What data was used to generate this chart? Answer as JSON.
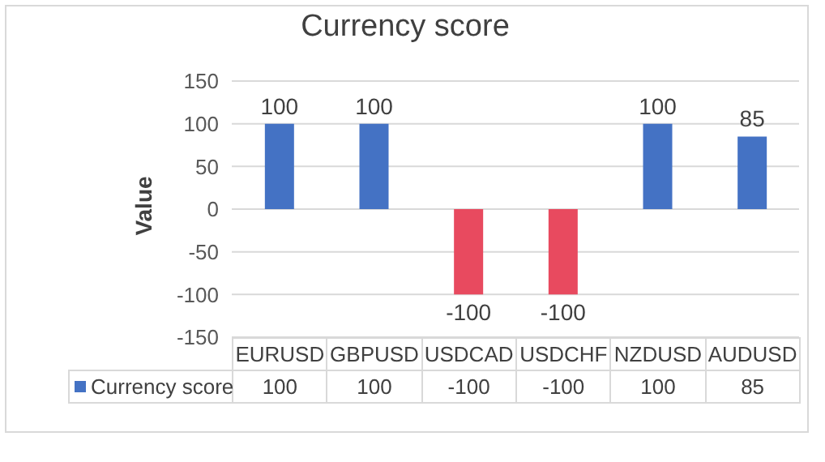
{
  "chart_data": {
    "type": "bar",
    "title": "Currency score",
    "ylabel": "Value",
    "categories": [
      "EURUSD",
      "GBPUSD",
      "USDCAD",
      "USDCHF",
      "NZDUSD",
      "AUDUSD"
    ],
    "series": [
      {
        "name": "Currency score",
        "color": "#4472c4",
        "colors": [
          "#4472c4",
          "#4472c4",
          "#e84a5f",
          "#e84a5f",
          "#4472c4",
          "#4472c4"
        ],
        "values": [
          100,
          100,
          -100,
          -100,
          100,
          85
        ],
        "value_labels": [
          "100",
          "100",
          "-100",
          "-100",
          "100",
          "85"
        ]
      }
    ],
    "ylim": [
      -150,
      150
    ],
    "yticks": [
      -150,
      -100,
      -50,
      0,
      50,
      100,
      150
    ],
    "annotations": [
      "100",
      "100",
      "-100",
      "-100",
      "100",
      "85"
    ],
    "grid": "y",
    "legend": "bottom"
  }
}
